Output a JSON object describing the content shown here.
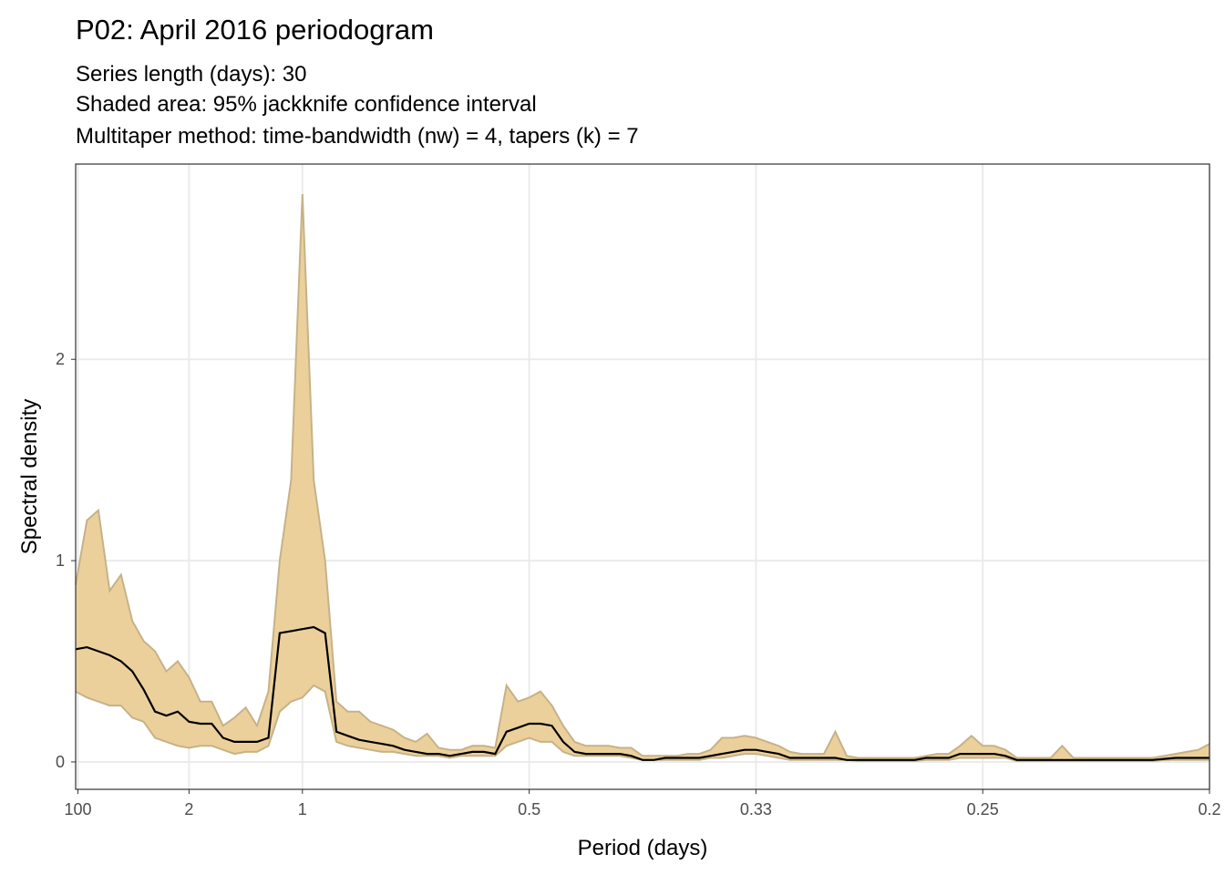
{
  "chart_data": {
    "type": "band-line",
    "title": "P02: April 2016 periodogram",
    "subtitle": [
      "Series length (days): 30",
      "Shaded area: 95% jackknife confidence interval",
      "Multitaper method: time-bandwidth (nw) = 4, tapers (k) = 7"
    ],
    "x_label": "Period (days)",
    "y_label": "Spectral density",
    "xlim": [
      0,
      5
    ],
    "ylim": [
      -0.136,
      2.97
    ],
    "xticks": [
      {
        "value": 0.01,
        "label": "100"
      },
      {
        "value": 0.5,
        "label": "2"
      },
      1,
      {
        "value": 2,
        "label": "0.5"
      },
      {
        "value": 3,
        "label": "0.33"
      },
      {
        "value": 4,
        "label": "0.25"
      },
      {
        "value": 5,
        "label": "0.2"
      }
    ],
    "yticks": [
      0,
      1,
      2
    ],
    "grid": true,
    "color": "#000000",
    "band_color": "#ecd09c",
    "band_line_color": "#c6b287",
    "x": [
      0,
      0.05,
      0.1,
      0.15,
      0.2,
      0.25,
      0.3,
      0.35,
      0.4,
      0.45,
      0.5,
      0.55,
      0.6,
      0.65,
      0.7,
      0.75,
      0.8,
      0.85,
      0.9,
      0.95,
      1,
      1.05,
      1.1,
      1.15,
      1.2,
      1.25,
      1.3,
      1.35,
      1.4,
      1.45,
      1.5,
      1.55,
      1.6,
      1.65,
      1.7,
      1.75,
      1.8,
      1.85,
      1.9,
      1.95,
      2,
      2.05,
      2.1,
      2.15,
      2.2,
      2.25,
      2.3,
      2.35,
      2.4,
      2.45,
      2.5,
      2.55,
      2.6,
      2.65,
      2.7,
      2.75,
      2.8,
      2.85,
      2.9,
      2.95,
      3,
      3.05,
      3.1,
      3.15,
      3.2,
      3.25,
      3.3,
      3.35,
      3.4,
      3.45,
      3.5,
      3.55,
      3.6,
      3.65,
      3.7,
      3.75,
      3.8,
      3.85,
      3.9,
      3.95,
      4,
      4.05,
      4.1,
      4.15,
      4.2,
      4.25,
      4.3,
      4.35,
      4.4,
      4.45,
      4.5,
      4.55,
      4.6,
      4.65,
      4.7,
      4.75,
      4.8,
      4.85,
      4.9,
      4.95,
      5
    ],
    "values": [
      0.56,
      0.57,
      0.55,
      0.53,
      0.5,
      0.45,
      0.36,
      0.25,
      0.23,
      0.25,
      0.2,
      0.19,
      0.19,
      0.12,
      0.1,
      0.1,
      0.1,
      0.12,
      0.64,
      0.65,
      0.66,
      0.67,
      0.64,
      0.15,
      0.13,
      0.11,
      0.1,
      0.09,
      0.08,
      0.06,
      0.05,
      0.04,
      0.04,
      0.03,
      0.04,
      0.05,
      0.05,
      0.04,
      0.15,
      0.17,
      0.19,
      0.19,
      0.18,
      0.1,
      0.05,
      0.04,
      0.04,
      0.04,
      0.04,
      0.03,
      0.01,
      0.01,
      0.02,
      0.02,
      0.02,
      0.02,
      0.03,
      0.04,
      0.05,
      0.06,
      0.06,
      0.05,
      0.04,
      0.02,
      0.02,
      0.02,
      0.02,
      0.02,
      0.01,
      0.01,
      0.01,
      0.01,
      0.01,
      0.01,
      0.01,
      0.02,
      0.02,
      0.02,
      0.04,
      0.04,
      0.04,
      0.04,
      0.03,
      0.01,
      0.01,
      0.01,
      0.01,
      0.01,
      0.01,
      0.01,
      0.01,
      0.01,
      0.01,
      0.01,
      0.01,
      0.01,
      0.015,
      0.02,
      0.02,
      0.02,
      0.02
    ],
    "upper": [
      0.88,
      1.2,
      1.25,
      0.85,
      0.93,
      0.7,
      0.6,
      0.55,
      0.45,
      0.5,
      0.42,
      0.3,
      0.3,
      0.18,
      0.22,
      0.27,
      0.18,
      0.35,
      1.0,
      1.4,
      2.82,
      1.4,
      1.0,
      0.3,
      0.25,
      0.25,
      0.2,
      0.18,
      0.16,
      0.12,
      0.1,
      0.14,
      0.07,
      0.06,
      0.06,
      0.08,
      0.08,
      0.07,
      0.38,
      0.3,
      0.32,
      0.35,
      0.28,
      0.18,
      0.1,
      0.08,
      0.08,
      0.08,
      0.07,
      0.07,
      0.03,
      0.03,
      0.03,
      0.03,
      0.04,
      0.04,
      0.06,
      0.12,
      0.12,
      0.13,
      0.12,
      0.1,
      0.08,
      0.05,
      0.04,
      0.04,
      0.04,
      0.15,
      0.03,
      0.02,
      0.02,
      0.02,
      0.02,
      0.02,
      0.02,
      0.03,
      0.04,
      0.04,
      0.08,
      0.13,
      0.08,
      0.08,
      0.06,
      0.02,
      0.02,
      0.02,
      0.02,
      0.08,
      0.02,
      0.02,
      0.02,
      0.02,
      0.02,
      0.02,
      0.02,
      0.02,
      0.03,
      0.04,
      0.05,
      0.06,
      0.09
    ],
    "lower": [
      0.35,
      0.32,
      0.3,
      0.28,
      0.28,
      0.22,
      0.2,
      0.12,
      0.1,
      0.08,
      0.07,
      0.08,
      0.08,
      0.06,
      0.04,
      0.05,
      0.05,
      0.08,
      0.25,
      0.3,
      0.32,
      0.38,
      0.35,
      0.1,
      0.08,
      0.07,
      0.06,
      0.05,
      0.05,
      0.04,
      0.03,
      0.03,
      0.03,
      0.02,
      0.03,
      0.03,
      0.03,
      0.03,
      0.08,
      0.1,
      0.12,
      0.1,
      0.1,
      0.05,
      0.03,
      0.03,
      0.03,
      0.03,
      0.03,
      0.02,
      0.01,
      0.01,
      0.01,
      0.01,
      0.01,
      0.01,
      0.02,
      0.02,
      0.03,
      0.04,
      0.04,
      0.03,
      0.02,
      0.01,
      0.01,
      0.01,
      0.01,
      0.01,
      0.01,
      0.005,
      0.005,
      0.005,
      0.005,
      0.005,
      0.005,
      0.01,
      0.01,
      0.01,
      0.02,
      0.02,
      0.02,
      0.02,
      0.02,
      0.005,
      0.005,
      0.005,
      0.005,
      0.005,
      0.005,
      0.005,
      0.005,
      0.005,
      0.005,
      0.005,
      0.005,
      0.005,
      0.01,
      0.01,
      0.01,
      0.01,
      0.01
    ]
  }
}
